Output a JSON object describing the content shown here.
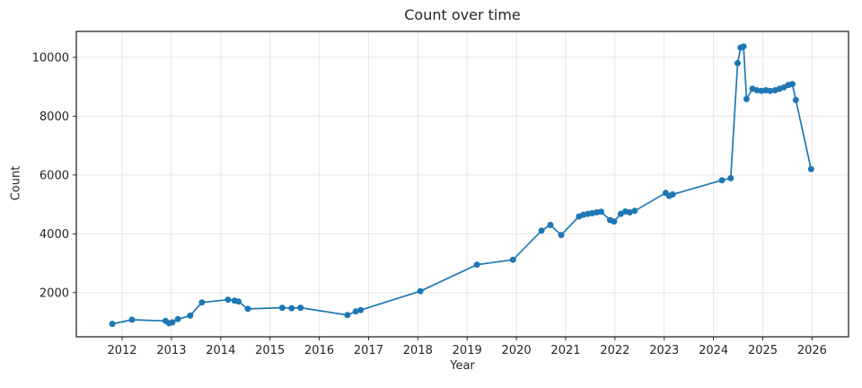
{
  "chart_data": {
    "type": "line",
    "title": "Count over time",
    "xlabel": "Year",
    "ylabel": "Count",
    "x_ticks": [
      2012,
      2013,
      2014,
      2015,
      2016,
      2017,
      2018,
      2019,
      2020,
      2021,
      2022,
      2023,
      2024,
      2025,
      2026
    ],
    "y_ticks": [
      2000,
      4000,
      6000,
      8000,
      10000
    ],
    "xlim": [
      2011.07,
      2026.74
    ],
    "ylim": [
      500,
      10880
    ],
    "grid": true,
    "legend_position": "none",
    "series": [
      {
        "name": "Count",
        "color": "#1f77b4",
        "marker": "circle",
        "points": [
          [
            2011.8,
            940
          ],
          [
            2012.2,
            1080
          ],
          [
            2012.88,
            1040
          ],
          [
            2012.95,
            960
          ],
          [
            2013.02,
            990
          ],
          [
            2013.13,
            1100
          ],
          [
            2013.38,
            1220
          ],
          [
            2013.62,
            1670
          ],
          [
            2014.15,
            1760
          ],
          [
            2014.28,
            1730
          ],
          [
            2014.36,
            1700
          ],
          [
            2014.55,
            1450
          ],
          [
            2015.25,
            1490
          ],
          [
            2015.44,
            1470
          ],
          [
            2015.62,
            1490
          ],
          [
            2016.57,
            1240
          ],
          [
            2016.74,
            1360
          ],
          [
            2016.84,
            1410
          ],
          [
            2018.05,
            2050
          ],
          [
            2019.2,
            2950
          ],
          [
            2019.93,
            3120
          ],
          [
            2020.51,
            4110
          ],
          [
            2020.69,
            4300
          ],
          [
            2020.91,
            3960
          ],
          [
            2021.27,
            4590
          ],
          [
            2021.36,
            4650
          ],
          [
            2021.45,
            4680
          ],
          [
            2021.54,
            4700
          ],
          [
            2021.63,
            4730
          ],
          [
            2021.72,
            4750
          ],
          [
            2021.9,
            4470
          ],
          [
            2021.98,
            4420
          ],
          [
            2022.12,
            4680
          ],
          [
            2022.21,
            4760
          ],
          [
            2022.3,
            4730
          ],
          [
            2022.4,
            4780
          ],
          [
            2023.03,
            5390
          ],
          [
            2023.1,
            5290
          ],
          [
            2023.17,
            5340
          ],
          [
            2024.17,
            5820
          ],
          [
            2024.35,
            5890
          ],
          [
            2024.49,
            9800
          ],
          [
            2024.55,
            10330
          ],
          [
            2024.61,
            10370
          ],
          [
            2024.67,
            8580
          ],
          [
            2024.79,
            8930
          ],
          [
            2024.88,
            8880
          ],
          [
            2024.97,
            8860
          ],
          [
            2025.06,
            8880
          ],
          [
            2025.15,
            8860
          ],
          [
            2025.25,
            8880
          ],
          [
            2025.34,
            8930
          ],
          [
            2025.43,
            8980
          ],
          [
            2025.52,
            9060
          ],
          [
            2025.6,
            9090
          ],
          [
            2025.67,
            8550
          ],
          [
            2025.98,
            6200
          ]
        ]
      }
    ]
  },
  "style": {
    "line_color": "#1f77b4",
    "marker_color": "#1f77b4",
    "grid_color": "#e6e6e6",
    "axis_color": "#454545",
    "tick_color": "#262626",
    "text_color": "#262626",
    "background": "#ffffff"
  }
}
